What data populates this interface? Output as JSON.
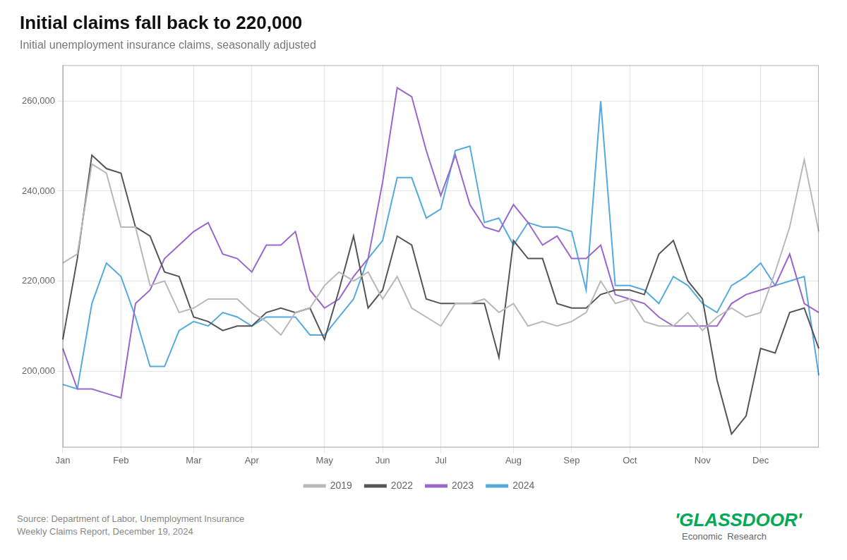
{
  "chart_data": {
    "type": "line",
    "title": "Initial claims fall back to 220,000",
    "subtitle": "Initial unemployment insurance claims, seasonally adjusted",
    "source": "Source: Department of Labor, Unemployment Insurance\nWeekly Claims Report, December 19, 2024",
    "annotations": [
      {
        "text": "'GLASSDOOR'",
        "color": "#00aa55"
      },
      {
        "text": "Economic  Research"
      }
    ],
    "categories": [
      "Jan",
      null,
      null,
      null,
      "Feb",
      null,
      null,
      null,
      null,
      "Mar",
      null,
      null,
      null,
      "Apr",
      null,
      null,
      null,
      null,
      "May",
      null,
      null,
      null,
      "Jun",
      null,
      null,
      null,
      "Jul",
      null,
      null,
      null,
      null,
      "Aug",
      null,
      null,
      null,
      "Sep",
      null,
      null,
      null,
      "Oct",
      null,
      null,
      null,
      null,
      "Nov",
      null,
      null,
      null,
      "Dec",
      null,
      null,
      null,
      null
    ],
    "series": [
      {
        "name": "2019",
        "color": "#b8b8b8",
        "values": [
          224000,
          226000,
          246000,
          244000,
          232000,
          232000,
          219000,
          220000,
          213000,
          214000,
          216000,
          216000,
          216000,
          213000,
          211000,
          208000,
          213000,
          214000,
          219000,
          222000,
          220000,
          222000,
          216000,
          221000,
          214000,
          212000,
          210000,
          215000,
          215000,
          216000,
          213000,
          215000,
          210000,
          211000,
          210000,
          211000,
          213000,
          220000,
          215000,
          216000,
          211000,
          210000,
          210000,
          213000,
          209000,
          212000,
          214000,
          212000,
          213000,
          222000,
          232000,
          247000,
          231000
        ]
      },
      {
        "name": "2022",
        "color": "#555555",
        "values": [
          207000,
          225000,
          248000,
          245000,
          244000,
          232000,
          230000,
          222000,
          221000,
          212000,
          211000,
          209000,
          210000,
          210000,
          213000,
          214000,
          213000,
          214000,
          207000,
          218000,
          230000,
          214000,
          218000,
          230000,
          228000,
          216000,
          215000,
          215000,
          215000,
          215000,
          203000,
          229000,
          225000,
          225000,
          215000,
          214000,
          214000,
          217000,
          218000,
          218000,
          217000,
          226000,
          229000,
          220000,
          216000,
          198000,
          186000,
          190000,
          205000,
          204000,
          213000,
          214000,
          205000
        ]
      },
      {
        "name": "2023",
        "color": "#9966cc",
        "values": [
          205000,
          196000,
          196000,
          195000,
          194000,
          215000,
          218000,
          225000,
          228000,
          231000,
          233000,
          226000,
          225000,
          222000,
          228000,
          228000,
          231000,
          218000,
          214000,
          216000,
          221000,
          225000,
          242000,
          263000,
          261000,
          249000,
          239000,
          248000,
          237000,
          232000,
          231000,
          237000,
          233000,
          228000,
          230000,
          225000,
          225000,
          228000,
          217000,
          216000,
          215000,
          212000,
          210000,
          210000,
          210000,
          210000,
          215000,
          217000,
          218000,
          219000,
          226000,
          215000,
          213000
        ]
      },
      {
        "name": "2024",
        "color": "#55aadd",
        "values": [
          197000,
          196000,
          215000,
          224000,
          221000,
          212000,
          201000,
          201000,
          209000,
          211000,
          210000,
          213000,
          212000,
          210000,
          212000,
          212000,
          212000,
          208000,
          208000,
          212000,
          216000,
          225000,
          229000,
          243000,
          243000,
          234000,
          236000,
          249000,
          250000,
          233000,
          234000,
          228000,
          233000,
          232000,
          232000,
          231000,
          218000,
          260000,
          219000,
          219000,
          218000,
          215000,
          221000,
          219000,
          215000,
          213000,
          219000,
          221000,
          224000,
          219000,
          220000,
          221000,
          199000
        ]
      }
    ],
    "ylim": [
      183000,
      268000
    ],
    "yticks": [
      {
        "value": 200000,
        "label": "200,000"
      },
      {
        "value": 220000,
        "label": "220,000"
      },
      {
        "value": 240000,
        "label": "240,000"
      },
      {
        "value": 260000,
        "label": "260,000"
      }
    ],
    "grid": true,
    "legend": "bottom"
  }
}
